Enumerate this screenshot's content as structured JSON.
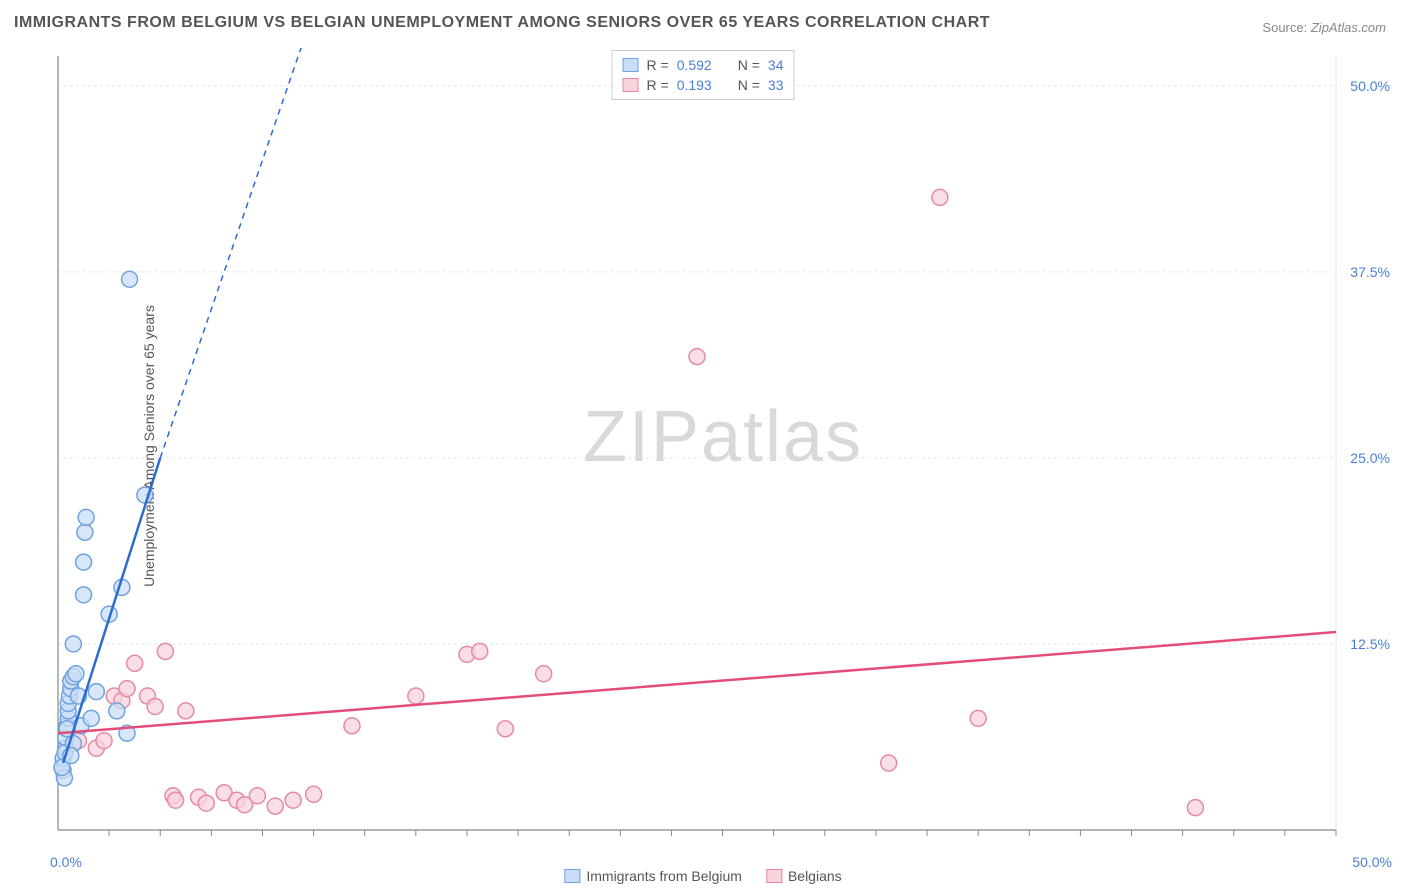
{
  "title": "IMMIGRANTS FROM BELGIUM VS BELGIAN UNEMPLOYMENT AMONG SENIORS OVER 65 YEARS CORRELATION CHART",
  "source_label": "Source:",
  "source_value": "ZipAtlas.com",
  "y_axis_label": "Unemployment Among Seniors over 65 years",
  "watermark_bold": "ZIP",
  "watermark_light": "atlas",
  "chart": {
    "type": "scatter",
    "background_color": "#ffffff",
    "grid_color": "#e5e5e5",
    "axis_color": "#888888",
    "xlim": [
      0,
      50
    ],
    "ylim": [
      0,
      52
    ],
    "x_origin_label": "0.0%",
    "x_max_label": "50.0%",
    "y_ticks": [
      {
        "v": 12.5,
        "label": "12.5%"
      },
      {
        "v": 25.0,
        "label": "25.0%"
      },
      {
        "v": 37.5,
        "label": "37.5%"
      },
      {
        "v": 50.0,
        "label": "50.0%"
      }
    ],
    "x_minor_ticks": [
      2,
      4,
      6,
      8,
      10,
      12,
      14,
      16,
      18,
      20,
      22,
      24,
      26,
      28,
      30,
      32,
      34,
      36,
      38,
      40,
      42,
      44,
      46,
      48,
      50
    ],
    "y_tick_color": "#4a7fd8",
    "marker_radius": 8,
    "marker_stroke_width": 1.5,
    "trend_line_width": 2.5,
    "trend_dash": "6,5",
    "series": [
      {
        "name": "Immigrants from Belgium",
        "fill": "#c9def6",
        "stroke": "#6ea3e0",
        "line_color": "#2e6bd1",
        "R": "0.592",
        "N": "34",
        "trend": {
          "x1": 0.2,
          "y1": 4.5,
          "x2_solid": 4.0,
          "y2_solid": 25.0,
          "x2_dash": 10.0,
          "y2_dash": 55.0
        },
        "points": [
          {
            "x": 0.2,
            "y": 4.0
          },
          {
            "x": 0.2,
            "y": 4.8
          },
          {
            "x": 0.3,
            "y": 5.5
          },
          {
            "x": 0.3,
            "y": 6.2
          },
          {
            "x": 0.35,
            "y": 7.0
          },
          {
            "x": 0.4,
            "y": 7.5
          },
          {
            "x": 0.4,
            "y": 8.0
          },
          {
            "x": 0.4,
            "y": 8.5
          },
          {
            "x": 0.45,
            "y": 9.0
          },
          {
            "x": 0.5,
            "y": 9.5
          },
          {
            "x": 0.5,
            "y": 10.0
          },
          {
            "x": 0.6,
            "y": 10.3
          },
          {
            "x": 0.6,
            "y": 12.5
          },
          {
            "x": 0.7,
            "y": 10.5
          },
          {
            "x": 0.8,
            "y": 9.0
          },
          {
            "x": 0.9,
            "y": 7.0
          },
          {
            "x": 1.0,
            "y": 15.8
          },
          {
            "x": 1.0,
            "y": 18.0
          },
          {
            "x": 1.05,
            "y": 20.0
          },
          {
            "x": 1.1,
            "y": 21.0
          },
          {
            "x": 1.3,
            "y": 7.5
          },
          {
            "x": 1.5,
            "y": 9.3
          },
          {
            "x": 2.0,
            "y": 14.5
          },
          {
            "x": 2.3,
            "y": 8.0
          },
          {
            "x": 2.5,
            "y": 16.3
          },
          {
            "x": 2.7,
            "y": 6.5
          },
          {
            "x": 3.4,
            "y": 22.5
          },
          {
            "x": 2.8,
            "y": 37.0
          },
          {
            "x": 0.25,
            "y": 3.5
          },
          {
            "x": 0.28,
            "y": 5.2
          },
          {
            "x": 0.35,
            "y": 6.8
          },
          {
            "x": 0.6,
            "y": 5.8
          },
          {
            "x": 0.15,
            "y": 4.2
          },
          {
            "x": 0.5,
            "y": 5.0
          }
        ]
      },
      {
        "name": "Belgians",
        "fill": "#f8d3dc",
        "stroke": "#e68aa3",
        "line_color": "#e44d7a",
        "R": "0.193",
        "N": "33",
        "trend": {
          "x1": 0,
          "y1": 6.5,
          "x2_solid": 50,
          "y2_solid": 13.3
        },
        "points": [
          {
            "x": 0.8,
            "y": 6.0
          },
          {
            "x": 1.5,
            "y": 5.5
          },
          {
            "x": 1.8,
            "y": 6.0
          },
          {
            "x": 2.2,
            "y": 9.0
          },
          {
            "x": 2.5,
            "y": 8.7
          },
          {
            "x": 2.7,
            "y": 9.5
          },
          {
            "x": 3.0,
            "y": 11.2
          },
          {
            "x": 3.5,
            "y": 9.0
          },
          {
            "x": 3.8,
            "y": 8.3
          },
          {
            "x": 4.2,
            "y": 12.0
          },
          {
            "x": 4.5,
            "y": 2.3
          },
          {
            "x": 4.6,
            "y": 2.0
          },
          {
            "x": 5.0,
            "y": 8.0
          },
          {
            "x": 5.5,
            "y": 2.2
          },
          {
            "x": 5.8,
            "y": 1.8
          },
          {
            "x": 6.5,
            "y": 2.5
          },
          {
            "x": 7.0,
            "y": 2.0
          },
          {
            "x": 7.3,
            "y": 1.7
          },
          {
            "x": 7.8,
            "y": 2.3
          },
          {
            "x": 8.5,
            "y": 1.6
          },
          {
            "x": 9.2,
            "y": 2.0
          },
          {
            "x": 10.0,
            "y": 2.4
          },
          {
            "x": 11.5,
            "y": 7.0
          },
          {
            "x": 14.0,
            "y": 9.0
          },
          {
            "x": 16.0,
            "y": 11.8
          },
          {
            "x": 17.5,
            "y": 6.8
          },
          {
            "x": 19.0,
            "y": 10.5
          },
          {
            "x": 25.0,
            "y": 31.8
          },
          {
            "x": 32.5,
            "y": 4.5
          },
          {
            "x": 34.5,
            "y": 42.5
          },
          {
            "x": 36.0,
            "y": 7.5
          },
          {
            "x": 44.5,
            "y": 1.5
          },
          {
            "x": 16.5,
            "y": 12.0
          }
        ]
      }
    ]
  },
  "legend_top": {
    "r_label": "R =",
    "n_label": "N ="
  },
  "legend_bottom": [
    {
      "label": "Immigrants from Belgium"
    },
    {
      "label": "Belgians"
    }
  ]
}
